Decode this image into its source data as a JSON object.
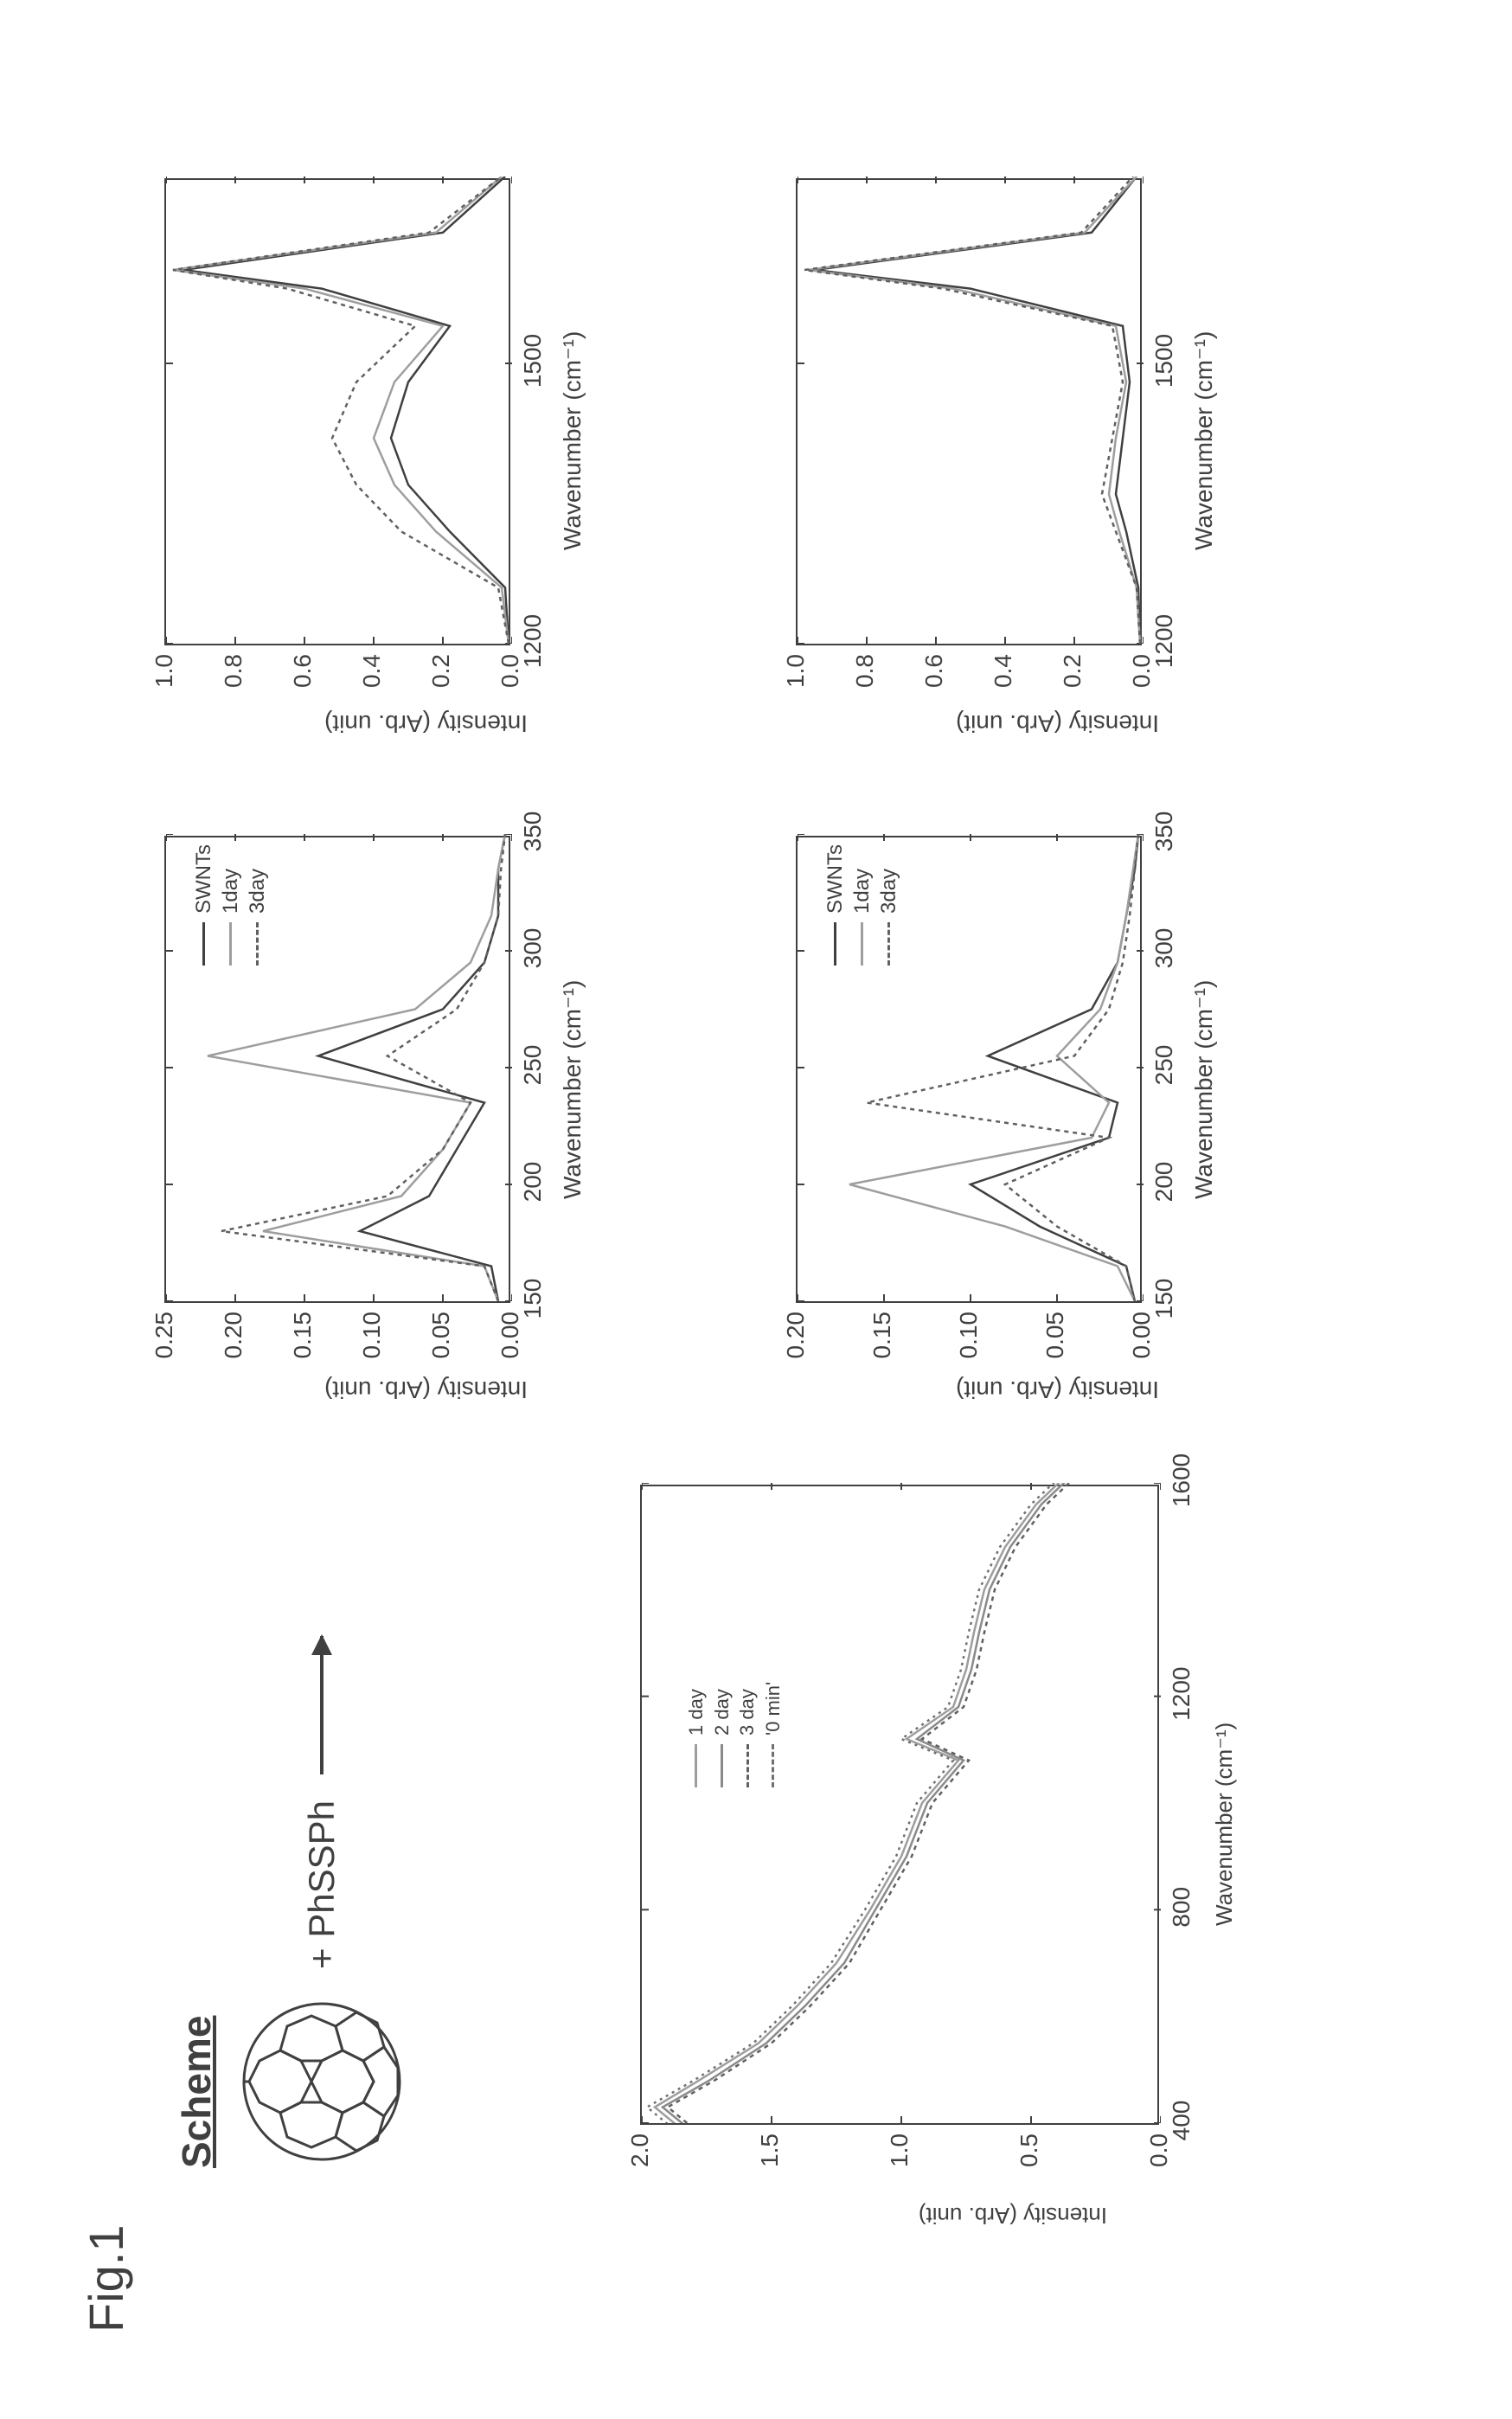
{
  "figure_label": "Fig.1",
  "scheme": {
    "title": "Scheme",
    "reagent": "+ PhSSPh"
  },
  "colors": {
    "ink": "#404040",
    "grid": "#404040",
    "bg": "#ffffff",
    "series_swnts": "#404040",
    "series_1day": "#9e9e9e",
    "series_2day": "#8a8a8a",
    "series_3day": "#606060",
    "series_10min": "#707070"
  },
  "legend_main": {
    "items": [
      {
        "label": "1 day",
        "style": "solid",
        "color": "#9e9e9e"
      },
      {
        "label": "2 day",
        "style": "solid",
        "color": "#8a8a8a"
      },
      {
        "label": "3 day",
        "style": "dashed",
        "color": "#606060"
      },
      {
        "label": "'0 min'",
        "style": "dashed",
        "color": "#707070"
      }
    ]
  },
  "legend_right": {
    "items": [
      {
        "label": "SWNTs",
        "style": "solid",
        "color": "#404040"
      },
      {
        "label": "1day",
        "style": "solid",
        "color": "#9e9e9e"
      },
      {
        "label": "3day",
        "style": "dashed",
        "color": "#606060"
      }
    ]
  },
  "chart_main": {
    "type": "line",
    "xlabel": "Wavenumber (cm⁻¹)",
    "ylabel": "Intensity (Arb. unit)",
    "xlim": [
      400,
      1600
    ],
    "xticks": [
      400,
      800,
      1200,
      1600
    ],
    "ylim": [
      0.0,
      2.0
    ],
    "yticks": [
      0.0,
      0.5,
      1.0,
      1.5,
      2.0
    ],
    "background": "#ffffff",
    "series": [
      {
        "name": "1 day",
        "color": "#9e9e9e",
        "dash": "none",
        "width": 2.5,
        "x": [
          390,
          430,
          480,
          550,
          620,
          700,
          800,
          900,
          1000,
          1080,
          1120,
          1180,
          1250,
          1320,
          1400,
          1480,
          1560,
          1620
        ],
        "y": [
          1.85,
          1.95,
          1.78,
          1.55,
          1.4,
          1.25,
          1.12,
          1.0,
          0.92,
          0.78,
          0.98,
          0.8,
          0.75,
          0.72,
          0.68,
          0.6,
          0.48,
          0.35
        ]
      },
      {
        "name": "2 day",
        "color": "#8a8a8a",
        "dash": "none",
        "width": 2.5,
        "x": [
          390,
          430,
          480,
          550,
          620,
          700,
          800,
          900,
          1000,
          1080,
          1120,
          1180,
          1250,
          1320,
          1400,
          1480,
          1560,
          1620
        ],
        "y": [
          1.82,
          1.92,
          1.74,
          1.52,
          1.37,
          1.22,
          1.1,
          0.98,
          0.9,
          0.76,
          0.94,
          0.78,
          0.73,
          0.7,
          0.66,
          0.58,
          0.46,
          0.33
        ]
      },
      {
        "name": "3 day",
        "color": "#606060",
        "dash": "5,5",
        "width": 2.5,
        "x": [
          390,
          430,
          480,
          550,
          620,
          700,
          800,
          900,
          1000,
          1080,
          1120,
          1180,
          1250,
          1320,
          1400,
          1480,
          1560,
          1620
        ],
        "y": [
          1.8,
          1.9,
          1.72,
          1.5,
          1.35,
          1.2,
          1.08,
          0.96,
          0.88,
          0.74,
          0.92,
          0.76,
          0.71,
          0.68,
          0.64,
          0.56,
          0.44,
          0.31
        ]
      },
      {
        "name": "'0 min'",
        "color": "#707070",
        "dash": "3,5",
        "width": 2.5,
        "x": [
          390,
          430,
          480,
          550,
          620,
          700,
          800,
          900,
          1000,
          1080,
          1120,
          1180,
          1250,
          1320,
          1400,
          1480,
          1560,
          1620
        ],
        "y": [
          1.88,
          1.98,
          1.8,
          1.57,
          1.42,
          1.27,
          1.14,
          1.02,
          0.94,
          0.8,
          1.0,
          0.82,
          0.77,
          0.74,
          0.7,
          0.62,
          0.5,
          0.37
        ]
      }
    ]
  },
  "chart_tr1": {
    "type": "line",
    "xlabel": "Wavenumber (cm⁻¹)",
    "ylabel": "Intensity (Arb. unit)",
    "xlim": [
      150,
      350
    ],
    "xticks": [
      150,
      200,
      250,
      300,
      350
    ],
    "ylim": [
      0.0,
      0.25
    ],
    "yticks": [
      0.0,
      0.05,
      0.1,
      0.15,
      0.2,
      0.25
    ],
    "background": "#ffffff",
    "series": [
      {
        "name": "SWNTs",
        "color": "#404040",
        "dash": "none",
        "width": 2.5,
        "x": [
          150,
          165,
          180,
          195,
          215,
          235,
          255,
          275,
          295,
          315,
          335,
          350
        ],
        "y": [
          0.01,
          0.015,
          0.11,
          0.06,
          0.04,
          0.02,
          0.14,
          0.05,
          0.02,
          0.01,
          0.01,
          0.005
        ]
      },
      {
        "name": "1day",
        "color": "#9e9e9e",
        "dash": "none",
        "width": 2.5,
        "x": [
          150,
          165,
          180,
          195,
          215,
          235,
          255,
          275,
          295,
          315,
          335,
          350
        ],
        "y": [
          0.01,
          0.02,
          0.18,
          0.08,
          0.05,
          0.03,
          0.22,
          0.07,
          0.03,
          0.015,
          0.01,
          0.005
        ]
      },
      {
        "name": "3day",
        "color": "#606060",
        "dash": "5,5",
        "width": 2.5,
        "x": [
          150,
          165,
          180,
          195,
          215,
          235,
          255,
          275,
          295,
          315,
          335,
          350
        ],
        "y": [
          0.01,
          0.02,
          0.21,
          0.09,
          0.05,
          0.03,
          0.09,
          0.04,
          0.02,
          0.01,
          0.008,
          0.005
        ]
      }
    ]
  },
  "chart_tr2": {
    "type": "line",
    "xlabel": "Wavenumber (cm⁻¹)",
    "ylabel": "Intensity (Arb. unit)",
    "xlim": [
      1200,
      1700
    ],
    "xticks": [
      1200,
      1500
    ],
    "ylim": [
      0.0,
      1.0
    ],
    "yticks": [
      0.0,
      0.2,
      0.4,
      0.6,
      0.8,
      1.0
    ],
    "background": "#ffffff",
    "series": [
      {
        "name": "SWNTs",
        "color": "#404040",
        "dash": "none",
        "width": 2.5,
        "x": [
          1200,
          1260,
          1320,
          1370,
          1420,
          1480,
          1540,
          1580,
          1600,
          1640,
          1700
        ],
        "y": [
          0.01,
          0.02,
          0.18,
          0.3,
          0.35,
          0.3,
          0.18,
          0.55,
          0.95,
          0.2,
          0.02
        ]
      },
      {
        "name": "1day",
        "color": "#9e9e9e",
        "dash": "none",
        "width": 2.5,
        "x": [
          1200,
          1260,
          1320,
          1370,
          1420,
          1480,
          1540,
          1580,
          1600,
          1640,
          1700
        ],
        "y": [
          0.01,
          0.03,
          0.22,
          0.34,
          0.4,
          0.34,
          0.2,
          0.6,
          0.98,
          0.22,
          0.03
        ]
      },
      {
        "name": "3day",
        "color": "#606060",
        "dash": "5,5",
        "width": 2.5,
        "x": [
          1200,
          1260,
          1320,
          1370,
          1420,
          1480,
          1540,
          1580,
          1600,
          1640,
          1700
        ],
        "y": [
          0.01,
          0.04,
          0.32,
          0.45,
          0.52,
          0.45,
          0.28,
          0.65,
          0.98,
          0.24,
          0.03
        ]
      }
    ]
  },
  "chart_br1": {
    "type": "line",
    "xlabel": "Wavenumber (cm⁻¹)",
    "ylabel": "Intensity (Arb. unit)",
    "xlim": [
      150,
      350
    ],
    "xticks": [
      150,
      200,
      250,
      300,
      350
    ],
    "ylim": [
      0.0,
      0.2
    ],
    "yticks": [
      0.0,
      0.05,
      0.1,
      0.15,
      0.2
    ],
    "background": "#ffffff",
    "series": [
      {
        "name": "SWNTs",
        "color": "#404040",
        "dash": "none",
        "width": 2.5,
        "x": [
          150,
          165,
          182,
          200,
          220,
          235,
          255,
          275,
          295,
          315,
          335,
          350
        ],
        "y": [
          0.005,
          0.01,
          0.06,
          0.1,
          0.02,
          0.015,
          0.09,
          0.03,
          0.015,
          0.01,
          0.005,
          0.003
        ]
      },
      {
        "name": "1day",
        "color": "#9e9e9e",
        "dash": "none",
        "width": 2.5,
        "x": [
          150,
          165,
          182,
          200,
          220,
          235,
          255,
          275,
          295,
          315,
          335,
          350
        ],
        "y": [
          0.005,
          0.015,
          0.08,
          0.17,
          0.03,
          0.02,
          0.05,
          0.025,
          0.015,
          0.01,
          0.006,
          0.003
        ]
      },
      {
        "name": "3day",
        "color": "#606060",
        "dash": "5,5",
        "width": 2.5,
        "x": [
          150,
          165,
          182,
          200,
          220,
          235,
          255,
          275,
          295,
          315,
          335,
          350
        ],
        "y": [
          0.005,
          0.01,
          0.05,
          0.08,
          0.02,
          0.16,
          0.04,
          0.02,
          0.012,
          0.008,
          0.005,
          0.003
        ]
      }
    ]
  },
  "chart_br2": {
    "type": "line",
    "xlabel": "Wavenumber (cm⁻¹)",
    "ylabel": "Intensity (Arb. unit)",
    "xlim": [
      1200,
      1700
    ],
    "xticks": [
      1200,
      1500
    ],
    "ylim": [
      0.0,
      1.0
    ],
    "yticks": [
      0.0,
      0.2,
      0.4,
      0.6,
      0.8,
      1.0
    ],
    "background": "#ffffff",
    "series": [
      {
        "name": "SWNTs",
        "color": "#404040",
        "dash": "none",
        "width": 2.5,
        "x": [
          1200,
          1260,
          1320,
          1360,
          1420,
          1480,
          1540,
          1580,
          1600,
          1640,
          1700
        ],
        "y": [
          0.01,
          0.015,
          0.05,
          0.08,
          0.06,
          0.04,
          0.06,
          0.5,
          0.95,
          0.15,
          0.02
        ]
      },
      {
        "name": "1day",
        "color": "#9e9e9e",
        "dash": "none",
        "width": 2.5,
        "x": [
          1200,
          1260,
          1320,
          1360,
          1420,
          1480,
          1540,
          1580,
          1600,
          1640,
          1700
        ],
        "y": [
          0.01,
          0.02,
          0.07,
          0.1,
          0.08,
          0.05,
          0.08,
          0.55,
          0.97,
          0.17,
          0.02
        ]
      },
      {
        "name": "3day",
        "color": "#606060",
        "dash": "5,5",
        "width": 2.5,
        "x": [
          1200,
          1260,
          1320,
          1360,
          1420,
          1480,
          1540,
          1580,
          1600,
          1640,
          1700
        ],
        "y": [
          0.01,
          0.02,
          0.08,
          0.12,
          0.09,
          0.06,
          0.09,
          0.58,
          0.98,
          0.18,
          0.03
        ]
      }
    ]
  }
}
